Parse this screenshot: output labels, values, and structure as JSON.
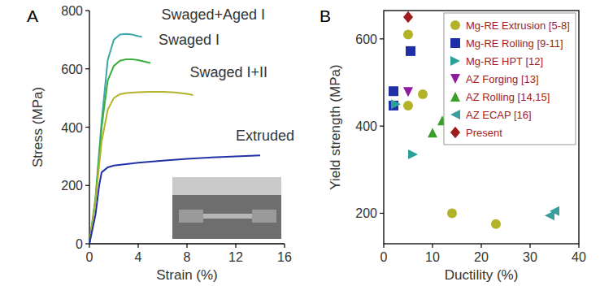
{
  "chart_data": [
    {
      "type": "line",
      "title": "A",
      "x_label": "Strain (%)",
      "y_label": "Stress (MPa)",
      "xlim": [
        0,
        16
      ],
      "xticks": [
        0,
        4,
        8,
        12,
        16
      ],
      "ylim": [
        0,
        800
      ],
      "yticks": [
        0,
        200,
        400,
        600,
        800
      ],
      "grid": false,
      "series": [
        {
          "name": "Swaged+Aged I",
          "color": "#3aa8a8",
          "x": [
            0,
            0.5,
            1,
            1.5,
            2,
            2.5,
            3,
            3.5,
            4,
            4.3
          ],
          "values": [
            0,
            160,
            420,
            630,
            700,
            718,
            720,
            718,
            712,
            710
          ]
        },
        {
          "name": "Swaged I",
          "color": "#3cae3c",
          "x": [
            0,
            0.5,
            1,
            1.5,
            2,
            2.5,
            3,
            3.5,
            4,
            4.5,
            5
          ],
          "values": [
            0,
            150,
            400,
            560,
            610,
            628,
            633,
            633,
            630,
            625,
            620
          ]
        },
        {
          "name": "Swaged I+II",
          "color": "#b3b32a",
          "x": [
            0,
            0.5,
            1,
            1.5,
            2,
            2.5,
            3,
            4,
            5,
            6,
            7,
            8,
            8.5
          ],
          "values": [
            0,
            150,
            350,
            460,
            500,
            513,
            517,
            520,
            521,
            521,
            519,
            514,
            510
          ]
        },
        {
          "name": "Extruded",
          "color": "#2233aa",
          "x": [
            0,
            0.5,
            0.8,
            1,
            1.5,
            2,
            4,
            6,
            8,
            10,
            12,
            14
          ],
          "values": [
            0,
            100,
            200,
            245,
            262,
            268,
            278,
            285,
            291,
            296,
            300,
            303
          ]
        }
      ]
    },
    {
      "type": "scatter",
      "title": "B",
      "x_label": "Ductility (%)",
      "y_label": "Yield strength (MPa)",
      "xlim": [
        0,
        40
      ],
      "xticks": [
        0,
        10,
        20,
        30,
        40
      ],
      "ylim": [
        130,
        665
      ],
      "yticks": [
        200,
        400,
        600
      ],
      "grid": false,
      "legend": "upper right",
      "series": [
        {
          "name": "Mg-RE Extrusion [5-8]",
          "color": "#b3b32a",
          "marker": "circle",
          "x": [
            5,
            5,
            8,
            14,
            23
          ],
          "values": [
            610,
            447,
            473,
            200,
            175
          ]
        },
        {
          "name": "Mg-RE Rolling [9-11]",
          "color": "#1f2fa8",
          "marker": "square",
          "x": [
            2,
            2,
            5.5
          ],
          "values": [
            480,
            447,
            572
          ]
        },
        {
          "name": "Mg-RE HPT [12]",
          "color": "#2aa198",
          "marker": "triangle-right",
          "x": [
            2.5,
            6
          ],
          "values": [
            450,
            335
          ]
        },
        {
          "name": "AZ Forging [13]",
          "color": "#8e1a9e",
          "marker": "triangle-down",
          "x": [
            5
          ],
          "values": [
            478
          ]
        },
        {
          "name": "AZ Rolling [14,15]",
          "color": "#3a9e2a",
          "marker": "triangle-up",
          "x": [
            10,
            12
          ],
          "values": [
            385,
            413
          ]
        },
        {
          "name": "AZ ECAP [16]",
          "color": "#3a9e9e",
          "marker": "triangle-left",
          "x": [
            34,
            35
          ],
          "values": [
            195,
            205
          ]
        },
        {
          "name": "Present",
          "color": "#a01c1c",
          "marker": "diamond",
          "x": [
            5
          ],
          "values": [
            650
          ]
        }
      ]
    }
  ]
}
